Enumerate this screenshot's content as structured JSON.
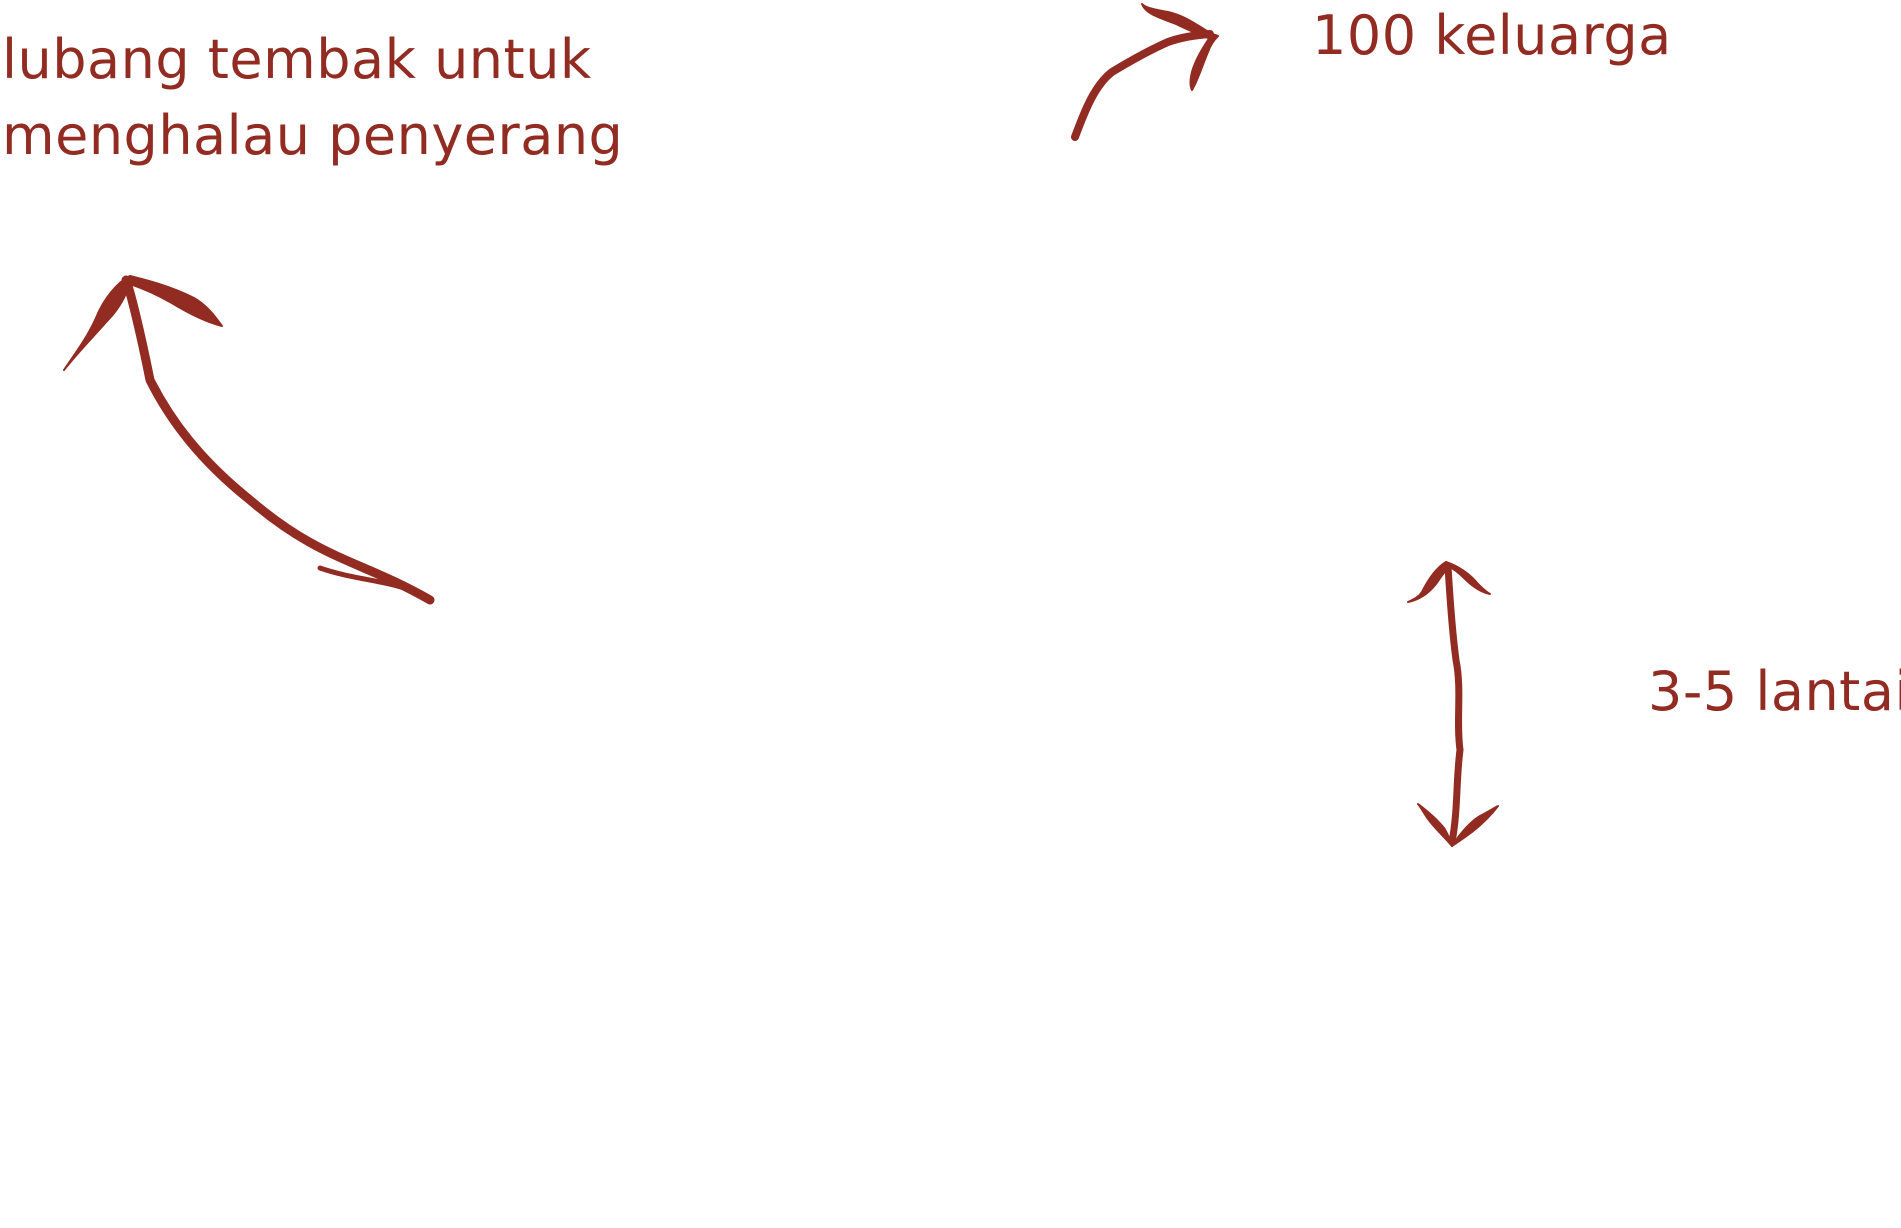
{
  "annotations": {
    "loophole": {
      "line1": "lubang tembak untuk",
      "line2": "menghalau penyerang"
    },
    "families": "100 keluarga",
    "floors": "3-5 lantai"
  },
  "colors": {
    "ink": "#922b21",
    "background": "#ffffff"
  },
  "icons": {
    "loophole_arrow": "curved-arrow-up-left-icon",
    "families_arrow": "curved-arrow-up-right-icon",
    "floors_arrow": "double-headed-vertical-arrow-icon"
  }
}
